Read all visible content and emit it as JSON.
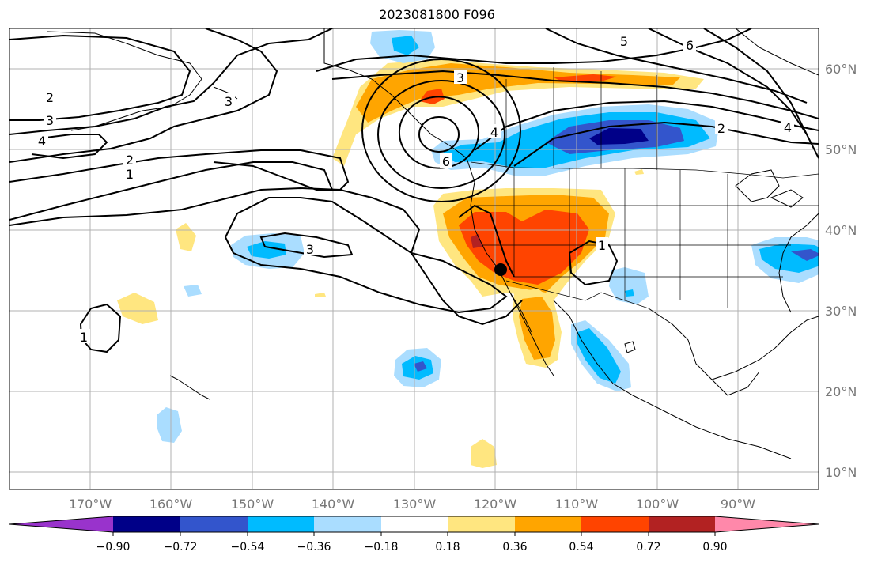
{
  "title": "2023081800 F096",
  "lon_labels": [
    "170°W",
    "160°W",
    "150°W",
    "140°W",
    "130°W",
    "120°W",
    "110°W",
    "100°W",
    "90°W"
  ],
  "lat_labels": [
    "60°N",
    "50°N",
    "40°N",
    "30°N",
    "20°N",
    "10°N"
  ],
  "colorbar": {
    "ticks": [
      "−0.90",
      "−0.72",
      "−0.54",
      "−0.36",
      "−0.18",
      "0.18",
      "0.36",
      "0.54",
      "0.72",
      "0.90"
    ],
    "colors": [
      "#9933cc",
      "#000088",
      "#3355cc",
      "#00bbff",
      "#aaddff",
      "#ffffff",
      "#ffe680",
      "#ffa500",
      "#ff4400",
      "#b22222",
      "#ff88aa"
    ]
  },
  "contour_labels": [
    "2",
    "3",
    "4",
    "2",
    "1",
    "3",
    "3",
    "4",
    "5",
    "6",
    "2",
    "4",
    "6",
    "3",
    "1",
    "1"
  ]
}
